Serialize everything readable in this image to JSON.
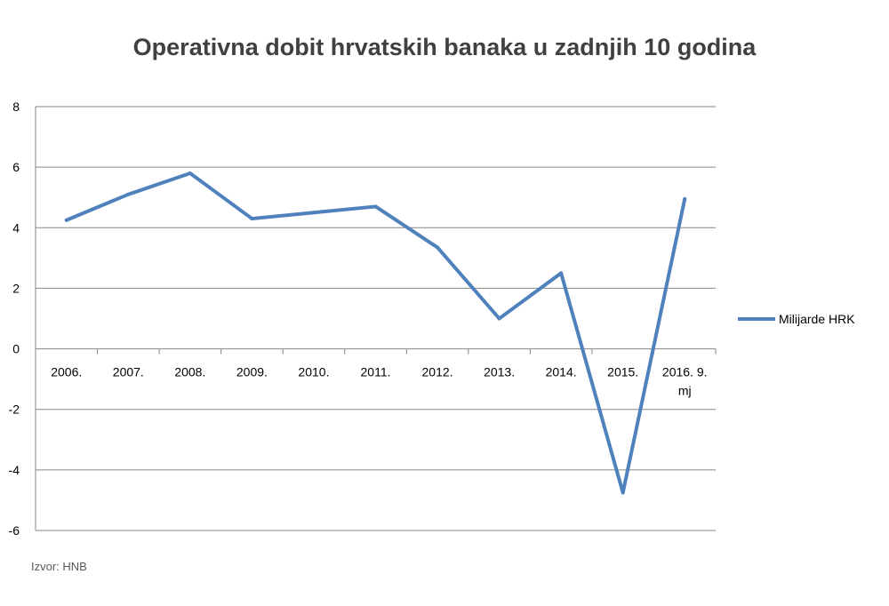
{
  "chart_data": {
    "type": "line",
    "title": "Operativna dobit hrvatskih banaka u zadnjih 10 godina",
    "categories": [
      "2006.",
      "2007.",
      "2008.",
      "2009.",
      "2010.",
      "2011.",
      "2012.",
      "2013.",
      "2014.",
      "2015.",
      "2016. 9. mj"
    ],
    "category_lines": [
      [
        "2006."
      ],
      [
        "2007."
      ],
      [
        "2008."
      ],
      [
        "2009."
      ],
      [
        "2010."
      ],
      [
        "2011."
      ],
      [
        "2012."
      ],
      [
        "2013."
      ],
      [
        "2014."
      ],
      [
        "2015."
      ],
      [
        "2016. 9.",
        "mj"
      ]
    ],
    "series": [
      {
        "name": "Milijarde HRK",
        "color": "#4f81bd",
        "values": [
          4.25,
          5.1,
          5.8,
          4.3,
          4.5,
          4.7,
          3.35,
          1.0,
          2.5,
          -4.75,
          4.95
        ]
      }
    ],
    "ylim": [
      -6,
      8
    ],
    "yticks": [
      8,
      6,
      4,
      2,
      0,
      -2,
      -4,
      -6
    ],
    "grid": true,
    "legend_position": "right",
    "xlabel": "",
    "ylabel": ""
  },
  "source": "Izvor: HNB"
}
